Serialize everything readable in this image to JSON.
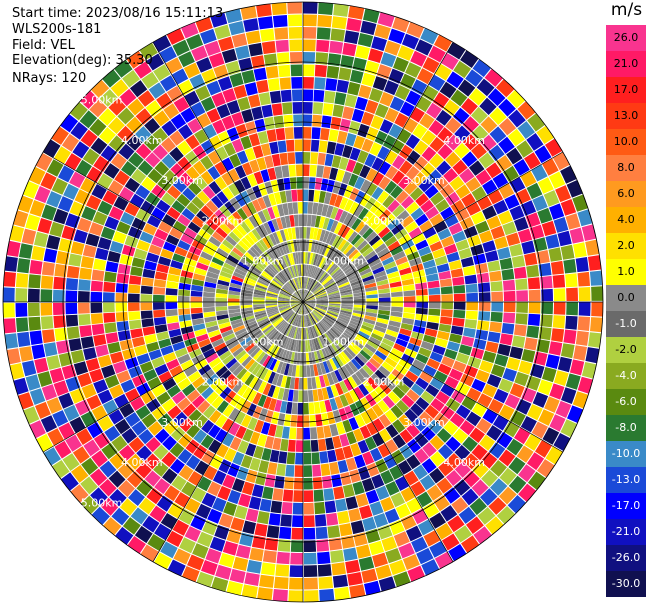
{
  "header": {
    "start_time": "Start time: 2023/08/16 15:11:13",
    "instrument": "WLS200s-181",
    "field": "Field: VEL",
    "elevation": "Elevation(deg): 35.30",
    "nrays": "NRays: 120"
  },
  "colorbar": {
    "unit": "m/s",
    "labels": [
      "26.0",
      "21.0",
      "17.0",
      "13.0",
      "10.0",
      "8.0",
      "6.0",
      "4.0",
      "2.0",
      "1.0",
      "0.0",
      "-1.0",
      "-2.0",
      "-4.0",
      "-6.0",
      "-8.0",
      "-10.0",
      "-13.0",
      "-17.0",
      "-21.0",
      "-26.0",
      "-30.0"
    ],
    "colors": [
      "#f9348f",
      "#ff1a66",
      "#ff1f1f",
      "#ff3a14",
      "#ff5a14",
      "#ff7f40",
      "#ff9a1f",
      "#ffb000",
      "#ffe000",
      "#ffff00",
      "#8a8a8a",
      "#6a6a6a",
      "#b0d040",
      "#8aaa20",
      "#5a8a10",
      "#2a7a30",
      "#3a8ac8",
      "#1a4ad8",
      "#0000ff",
      "#1010c0",
      "#101080",
      "#101050"
    ]
  },
  "ring_labels": [
    {
      "text": "5.00km"
    },
    {
      "text": "4.00km"
    },
    {
      "text": "3.00km"
    },
    {
      "text": "2.00km"
    },
    {
      "text": "1.00km"
    },
    {
      "text": "1.00km"
    },
    {
      "text": "2.00km"
    },
    {
      "text": "3.00km"
    },
    {
      "text": "4.00km"
    },
    {
      "text": "1.00km"
    },
    {
      "text": "2.00km"
    },
    {
      "text": "3.00km"
    },
    {
      "text": "4.00km"
    },
    {
      "text": "5.00km"
    },
    {
      "text": "1.00km"
    },
    {
      "text": "2.00km"
    },
    {
      "text": "3.00km"
    },
    {
      "text": "4.00km"
    }
  ]
}
